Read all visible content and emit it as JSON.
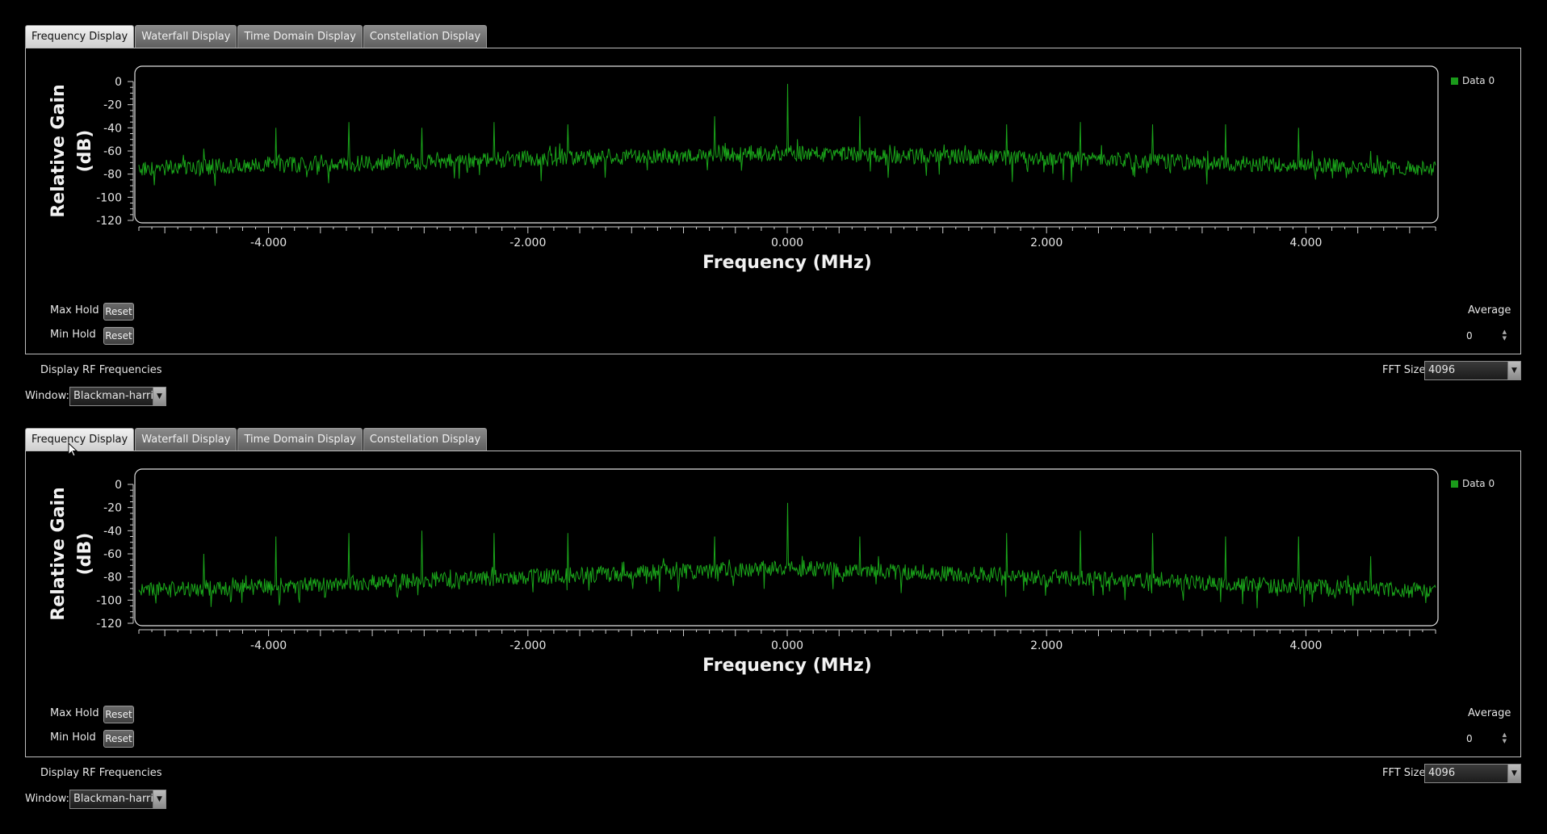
{
  "tabs": [
    "Frequency Display",
    "Waterfall Display",
    "Time Domain Display",
    "Constellation Display"
  ],
  "active_tab": 0,
  "controls": {
    "max_hold_label": "Max Hold",
    "min_hold_label": "Min Hold",
    "reset_label": "Reset",
    "average_label": "Average",
    "average_value": "0",
    "display_rf_label": "Display RF Frequencies",
    "fft_label": "FFT Size:",
    "fft_value": "4096",
    "window_label": "Window:",
    "window_value": "Blackman-harris"
  },
  "colors": {
    "trace": "#1aa51a",
    "legend": "#1a9a1a",
    "axis": "#cfcfcf"
  },
  "icons": {
    "spin_arrows": "up-down-arrows-icon",
    "dropdown": "chevron-down-icon",
    "cursor": "mouse-pointer-icon"
  },
  "chart_data": [
    {
      "type": "line",
      "xlabel": "Frequency (MHz)",
      "ylabel": "Relative Gain (dB)",
      "xlim": [
        -5.0,
        5.0
      ],
      "ylim": [
        -120,
        0
      ],
      "x_ticks": [
        "-4.000",
        "-2.000",
        "0.000",
        "2.000",
        "4.000"
      ],
      "y_ticks": [
        "0",
        "-20",
        "-40",
        "-60",
        "-80",
        "-100",
        "-120"
      ],
      "legend": "top-right",
      "series": [
        {
          "name": "Data 0",
          "noise_floor_profile": {
            "x": [
              -5.0,
              -2.5,
              0.0,
              2.5,
              5.0
            ],
            "y": [
              -75,
              -68,
              -62,
              -68,
              -75
            ]
          },
          "spikes": [
            {
              "x": -4.5,
              "y": -58
            },
            {
              "x": -3.94,
              "y": -40
            },
            {
              "x": -3.38,
              "y": -35
            },
            {
              "x": -2.82,
              "y": -40
            },
            {
              "x": -2.26,
              "y": -35
            },
            {
              "x": -1.69,
              "y": -37
            },
            {
              "x": -0.56,
              "y": -30
            },
            {
              "x": 0.0,
              "y": -2
            },
            {
              "x": 0.56,
              "y": -30
            },
            {
              "x": 1.69,
              "y": -37
            },
            {
              "x": 2.26,
              "y": -35
            },
            {
              "x": 2.82,
              "y": -37
            },
            {
              "x": 3.38,
              "y": -37
            },
            {
              "x": 3.94,
              "y": -40
            },
            {
              "x": 4.5,
              "y": -60
            }
          ]
        }
      ]
    },
    {
      "type": "line",
      "xlabel": "Frequency (MHz)",
      "ylabel": "Relative Gain (dB)",
      "xlim": [
        -5.0,
        5.0
      ],
      "ylim": [
        -120,
        0
      ],
      "x_ticks": [
        "-4.000",
        "-2.000",
        "0.000",
        "2.000",
        "4.000"
      ],
      "y_ticks": [
        "0",
        "-20",
        "-40",
        "-60",
        "-80",
        "-100",
        "-120"
      ],
      "legend": "top-right",
      "series": [
        {
          "name": "Data 0",
          "noise_floor_profile": {
            "x": [
              -5.0,
              -2.5,
              0.0,
              2.5,
              5.0
            ],
            "y": [
              -92,
              -82,
              -72,
              -82,
              -92
            ]
          },
          "spikes": [
            {
              "x": -4.5,
              "y": -60
            },
            {
              "x": -3.94,
              "y": -45
            },
            {
              "x": -3.38,
              "y": -42
            },
            {
              "x": -2.82,
              "y": -40
            },
            {
              "x": -2.26,
              "y": -42
            },
            {
              "x": -1.69,
              "y": -42
            },
            {
              "x": -0.56,
              "y": -45
            },
            {
              "x": 0.0,
              "y": -16
            },
            {
              "x": 0.56,
              "y": -45
            },
            {
              "x": 1.69,
              "y": -42
            },
            {
              "x": 2.26,
              "y": -40
            },
            {
              "x": 2.82,
              "y": -42
            },
            {
              "x": 3.38,
              "y": -45
            },
            {
              "x": 3.94,
              "y": -45
            },
            {
              "x": 4.5,
              "y": -62
            }
          ]
        }
      ]
    }
  ]
}
